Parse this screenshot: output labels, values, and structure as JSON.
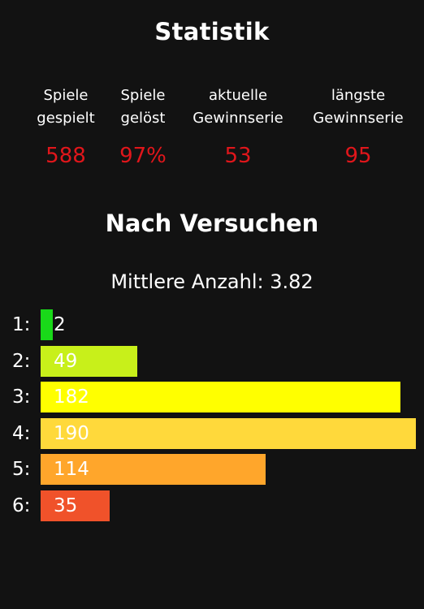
{
  "header": {
    "title": "Statistik"
  },
  "stats": [
    {
      "label": "Spiele\ngespielt",
      "value": "588"
    },
    {
      "label": "Spiele\ngelöst",
      "value": "97%"
    },
    {
      "label": "aktuelle\nGewinnserie",
      "value": "53"
    },
    {
      "label": "längste\nGewinnserie",
      "value": "95"
    }
  ],
  "section": {
    "title": "Nach Versuchen",
    "average_label": "Mittlere Anzahl: 3.82"
  },
  "distribution": [
    {
      "label": "1:",
      "value": 2,
      "color": "#19d919"
    },
    {
      "label": "2:",
      "value": 49,
      "color": "#c8f01a"
    },
    {
      "label": "3:",
      "value": 182,
      "color": "#ffff00"
    },
    {
      "label": "4:",
      "value": 190,
      "color": "#ffd93b"
    },
    {
      "label": "5:",
      "value": 114,
      "color": "#ffa62b"
    },
    {
      "label": "6:",
      "value": 35,
      "color": "#f0522a"
    }
  ],
  "colors": {
    "background": "#121212",
    "stat_value": "#e0161b",
    "text": "#ffffff"
  }
}
